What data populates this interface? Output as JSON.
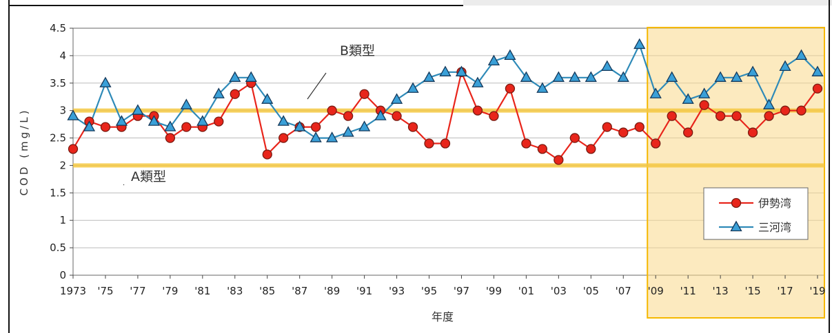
{
  "chart_data": {
    "type": "line",
    "title": "",
    "xlabel": "年度",
    "ylabel": "COD (mg/L)",
    "ylim": [
      0,
      4.5
    ],
    "yticks": [
      "0",
      "0.5",
      "1",
      "1.5",
      "2",
      "2.5",
      "3",
      "3.5",
      "4",
      "4.5"
    ],
    "xtick_labels": [
      "1973",
      "'75",
      "'77",
      "'79",
      "'81",
      "'83",
      "'85",
      "'87",
      "'89",
      "'91",
      "'93",
      "'95",
      "'97",
      "'99",
      "'01",
      "'03",
      "'05",
      "'07",
      "'09",
      "'11",
      "'13",
      "'15",
      "'17",
      "'19"
    ],
    "x": [
      1973,
      1974,
      1975,
      1976,
      1977,
      1978,
      1979,
      1980,
      1981,
      1982,
      1983,
      1984,
      1985,
      1986,
      1987,
      1988,
      1989,
      1990,
      1991,
      1992,
      1993,
      1994,
      1995,
      1996,
      1997,
      1998,
      1999,
      2000,
      2001,
      2002,
      2003,
      2004,
      2005,
      2006,
      2007,
      2008,
      2009,
      2010,
      2011,
      2012,
      2013,
      2014,
      2015,
      2016,
      2017,
      2018,
      2019
    ],
    "series": [
      {
        "name": "伊勢湾",
        "color": "#e8251b",
        "marker": "circle",
        "values": [
          2.3,
          2.8,
          2.7,
          2.7,
          2.9,
          2.9,
          2.5,
          2.7,
          2.7,
          2.8,
          3.3,
          3.5,
          2.2,
          2.5,
          2.7,
          2.7,
          3.0,
          2.9,
          3.3,
          3.0,
          2.9,
          2.7,
          2.4,
          2.4,
          3.7,
          3.0,
          2.9,
          3.4,
          2.4,
          2.3,
          2.1,
          2.5,
          2.3,
          2.7,
          2.6,
          2.7,
          2.4,
          2.9,
          2.6,
          3.1,
          2.9,
          2.9,
          2.6,
          2.9,
          3.0,
          3.0,
          3.4
        ]
      },
      {
        "name": "三河湾",
        "color": "#2e8ab8",
        "marker": "triangle",
        "values": [
          2.9,
          2.7,
          3.5,
          2.8,
          3.0,
          2.8,
          2.7,
          3.1,
          2.8,
          3.3,
          3.6,
          3.6,
          3.2,
          2.8,
          2.7,
          2.5,
          2.5,
          2.6,
          2.7,
          2.9,
          3.2,
          3.4,
          3.6,
          3.7,
          3.7,
          3.5,
          3.9,
          4.0,
          3.6,
          3.4,
          3.6,
          3.6,
          3.6,
          3.8,
          3.6,
          4.2,
          3.3,
          3.6,
          3.2,
          3.3,
          3.6,
          3.6,
          3.7,
          3.1,
          3.8,
          4.0,
          3.7
        ]
      }
    ],
    "reference_lines": [
      {
        "label": "A類型",
        "value": 2
      },
      {
        "label": "B類型",
        "value": 3
      }
    ],
    "highlight_range": [
      2009,
      2019
    ],
    "grid": true,
    "legend_position": "right"
  }
}
